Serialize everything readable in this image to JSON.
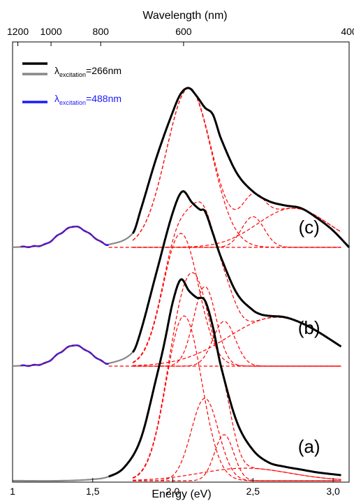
{
  "chart_data": {
    "type": "line",
    "xlabel": "Energy (eV)",
    "top_xlabel": "Wavelength (nm)",
    "x_range": [
      1.0,
      3.1
    ],
    "x_ticks": [
      {
        "value": 1.0,
        "label": "1"
      },
      {
        "value": 1.5,
        "label": "1,5"
      },
      {
        "value": 2.0,
        "label": "2,0"
      },
      {
        "value": 2.5,
        "label": "2,5"
      },
      {
        "value": 3.0,
        "label": "3,0"
      }
    ],
    "top_ticks": [
      {
        "value": 1.033,
        "label": "1200"
      },
      {
        "value": 1.24,
        "label": "1000"
      },
      {
        "value": 1.55,
        "label": "800"
      },
      {
        "value": 2.067,
        "label": "600"
      },
      {
        "value": 3.1,
        "label": "400"
      }
    ],
    "y_axis": "stacked offsets, no tick labels",
    "legend": {
      "placement": "top-left",
      "entries": [
        {
          "lambda": "λ",
          "subscript": "excitation",
          "value": "=266nm",
          "colors": [
            "#000000",
            "#888888"
          ]
        },
        {
          "lambda": "λ",
          "subscript": "excitation",
          "value": "=488nm",
          "colors": [
            "#1a1aff"
          ]
        }
      ]
    },
    "panel_labels": [
      {
        "text": "(c)",
        "x": 2.85,
        "y": 1.77
      },
      {
        "text": "(b)",
        "x": 2.85,
        "y": 1.05
      },
      {
        "text": "(a)",
        "x": 2.85,
        "y": 0.2
      }
    ],
    "colors": {
      "experimental_266": "#000000",
      "low_energy_266": "#888888",
      "excitation_488": "#1a1aff",
      "fits": "#ff0000"
    },
    "spectra": [
      {
        "label": "(a)",
        "offset": 0.0,
        "x": [
          1.0,
          1.3,
          1.5,
          1.6,
          1.7,
          1.8,
          1.9,
          1.95,
          2.0,
          2.05,
          2.1,
          2.15,
          2.2,
          2.25,
          2.3,
          2.4,
          2.5,
          2.6,
          2.7,
          2.8,
          2.9,
          3.05
        ],
        "y": [
          0.0,
          0.0,
          0.01,
          0.03,
          0.1,
          0.3,
          0.75,
          1.0,
          1.28,
          1.44,
          1.36,
          1.31,
          1.29,
          1.1,
          0.82,
          0.42,
          0.22,
          0.13,
          0.1,
          0.08,
          0.06,
          0.04
        ],
        "gray_upto": 1.6,
        "components": [
          {
            "center": 2.07,
            "height": 1.18,
            "sigma": 0.11
          },
          {
            "center": 2.2,
            "height": 0.59,
            "sigma": 0.085
          },
          {
            "center": 2.32,
            "height": 0.33,
            "sigma": 0.06
          },
          {
            "center": 2.45,
            "height": 0.09,
            "sigma": 0.28
          }
        ]
      },
      {
        "label": "(b)",
        "offset": 0.82,
        "x": [
          1.0,
          1.2,
          1.3,
          1.38,
          1.45,
          1.55,
          1.6,
          1.75,
          1.8,
          1.9,
          2.0,
          2.06,
          2.12,
          2.17,
          2.2,
          2.25,
          2.3,
          2.4,
          2.5,
          2.55,
          2.6,
          2.7,
          2.8,
          2.9,
          3.05
        ],
        "y": [
          0.0,
          0.02,
          0.1,
          0.15,
          0.12,
          0.04,
          0.02,
          0.1,
          0.25,
          0.68,
          1.1,
          1.25,
          1.17,
          1.12,
          1.11,
          0.95,
          0.78,
          0.52,
          0.4,
          0.37,
          0.36,
          0.35,
          0.31,
          0.25,
          0.14
        ],
        "gray_upto": 1.75,
        "blue_range": [
          1.0,
          1.6
        ],
        "components": [
          {
            "center": 2.05,
            "height": 0.95,
            "sigma": 0.11
          },
          {
            "center": 2.2,
            "height": 0.57,
            "sigma": 0.07
          },
          {
            "center": 2.32,
            "height": 0.32,
            "sigma": 0.07
          },
          {
            "center": 2.65,
            "height": 0.35,
            "sigma": 0.3
          }
        ]
      },
      {
        "label": "(c)",
        "offset": 1.67,
        "x": [
          1.0,
          1.2,
          1.3,
          1.38,
          1.45,
          1.55,
          1.6,
          1.75,
          1.8,
          1.9,
          2.0,
          2.05,
          2.1,
          2.15,
          2.2,
          2.25,
          2.3,
          2.4,
          2.5,
          2.6,
          2.7,
          2.8,
          2.9,
          3.0,
          3.1
        ],
        "y": [
          0.0,
          0.02,
          0.1,
          0.15,
          0.12,
          0.04,
          0.02,
          0.1,
          0.27,
          0.65,
          0.97,
          1.1,
          1.14,
          1.08,
          1.0,
          0.95,
          0.78,
          0.53,
          0.4,
          0.33,
          0.3,
          0.28,
          0.21,
          0.12,
          0.0
        ],
        "gray_upto": 1.75,
        "blue_range": [
          1.0,
          1.6
        ],
        "components": [
          {
            "center": 2.1,
            "height": 1.14,
            "sigma": 0.14
          },
          {
            "center": 2.5,
            "height": 0.22,
            "sigma": 0.07
          },
          {
            "center": 2.75,
            "height": 0.28,
            "sigma": 0.22
          }
        ]
      }
    ]
  }
}
